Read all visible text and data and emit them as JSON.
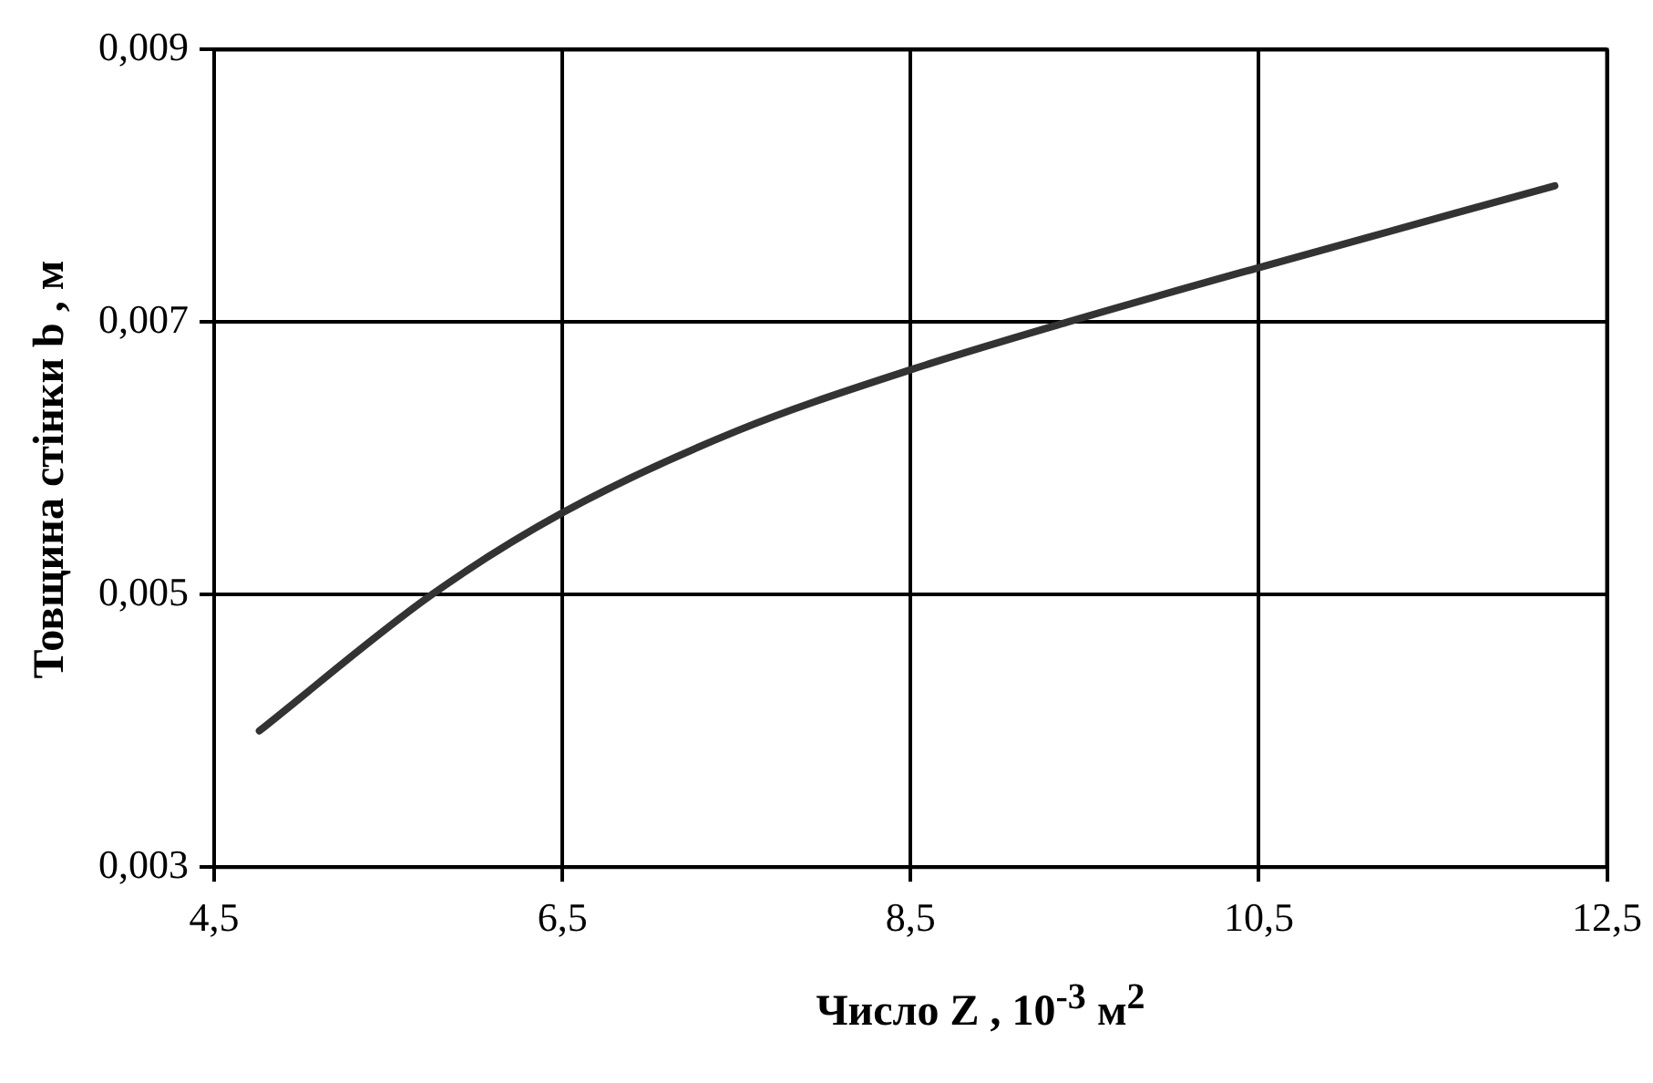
{
  "chart_data": {
    "type": "line",
    "xlabel": "Число Z , 10$^{-3}$ м$^{2}$",
    "ylabel": "Товщина стінки b , м",
    "x": [
      4.76,
      5.75,
      6.5,
      7.5,
      8.5,
      9.4,
      10.5,
      12.2
    ],
    "series": [
      {
        "color": "#333333",
        "values": [
          0.004,
          0.005,
          0.0056,
          0.0062,
          0.00665,
          0.007,
          0.0074,
          0.008
        ]
      }
    ],
    "xlim": [
      4.5,
      12.5
    ],
    "ylim": [
      0.003,
      0.009
    ],
    "xticks": [
      {
        "value": 4.5,
        "label": "4,5"
      },
      {
        "value": 6.5,
        "label": "6,5"
      },
      {
        "value": 8.5,
        "label": "8,5"
      },
      {
        "value": 10.5,
        "label": "10,5"
      },
      {
        "value": 12.5,
        "label": "12,5"
      }
    ],
    "yticks": [
      {
        "value": 0.003,
        "label": "0,003"
      },
      {
        "value": 0.005,
        "label": "0,005"
      },
      {
        "value": 0.007,
        "label": "0,007"
      },
      {
        "value": 0.009,
        "label": "0,009"
      }
    ],
    "grid": true,
    "legend": false,
    "marker": "none",
    "line_style": "solid"
  }
}
